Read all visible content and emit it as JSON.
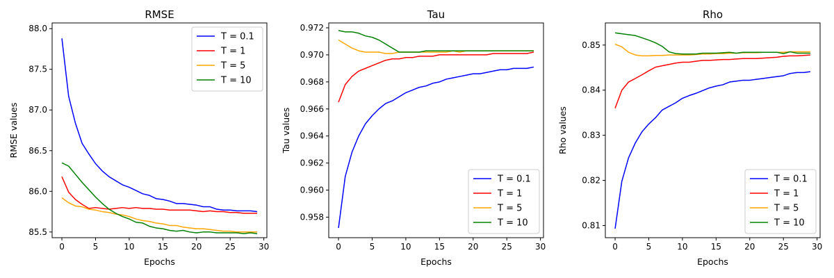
{
  "chart_data": [
    {
      "type": "line",
      "title": "RMSE",
      "xlabel": "Epochs",
      "ylabel": "RMSE values",
      "xlim": [
        -1.45,
        30.45
      ],
      "ylim": [
        85.43,
        88.07
      ],
      "xticks": [
        0,
        5,
        10,
        15,
        20,
        25,
        30
      ],
      "yticks": [
        85.5,
        86.0,
        86.5,
        87.0,
        87.5,
        88.0
      ],
      "ytick_labels": [
        "85.5",
        "86.0",
        "86.5",
        "87.0",
        "87.5",
        "88.0"
      ],
      "legend": "top-right",
      "x": [
        0,
        1,
        2,
        3,
        4,
        5,
        6,
        7,
        8,
        9,
        10,
        11,
        12,
        13,
        14,
        15,
        16,
        17,
        18,
        19,
        20,
        21,
        22,
        23,
        24,
        25,
        26,
        27,
        28,
        29
      ],
      "series": [
        {
          "name": "T = 0.1",
          "color": "#0000ff",
          "values": [
            87.88,
            87.17,
            86.84,
            86.59,
            86.46,
            86.34,
            86.25,
            86.18,
            86.13,
            86.08,
            86.05,
            86.01,
            85.97,
            85.95,
            85.91,
            85.9,
            85.88,
            85.85,
            85.85,
            85.84,
            85.83,
            85.81,
            85.81,
            85.78,
            85.77,
            85.77,
            85.76,
            85.76,
            85.76,
            85.75
          ]
        },
        {
          "name": "T = 1",
          "color": "#ff0000",
          "values": [
            86.18,
            85.99,
            85.9,
            85.84,
            85.79,
            85.8,
            85.79,
            85.78,
            85.79,
            85.8,
            85.79,
            85.8,
            85.79,
            85.79,
            85.78,
            85.78,
            85.77,
            85.77,
            85.77,
            85.77,
            85.76,
            85.75,
            85.76,
            85.75,
            85.75,
            85.74,
            85.74,
            85.73,
            85.73,
            85.73
          ]
        },
        {
          "name": "T = 5",
          "color": "#ffa500",
          "values": [
            85.92,
            85.86,
            85.82,
            85.81,
            85.78,
            85.77,
            85.75,
            85.74,
            85.72,
            85.71,
            85.69,
            85.66,
            85.64,
            85.63,
            85.61,
            85.6,
            85.58,
            85.58,
            85.56,
            85.55,
            85.54,
            85.54,
            85.53,
            85.52,
            85.51,
            85.51,
            85.5,
            85.5,
            85.5,
            85.5
          ]
        },
        {
          "name": "T = 10",
          "color": "#008000",
          "values": [
            86.35,
            86.31,
            86.21,
            86.11,
            86.02,
            85.93,
            85.85,
            85.78,
            85.73,
            85.69,
            85.66,
            85.62,
            85.61,
            85.57,
            85.55,
            85.54,
            85.52,
            85.51,
            85.52,
            85.5,
            85.49,
            85.5,
            85.5,
            85.49,
            85.49,
            85.49,
            85.49,
            85.48,
            85.49,
            85.48
          ]
        }
      ]
    },
    {
      "type": "line",
      "title": "Tau",
      "xlabel": "Epochs",
      "ylabel": "Tau values",
      "xlim": [
        -1.45,
        30.45
      ],
      "ylim": [
        0.95648,
        0.97236
      ],
      "xticks": [
        0,
        5,
        10,
        15,
        20,
        25,
        30
      ],
      "yticks": [
        0.958,
        0.96,
        0.962,
        0.964,
        0.966,
        0.968,
        0.97,
        0.972
      ],
      "ytick_labels": [
        "0.958",
        "0.960",
        "0.962",
        "0.964",
        "0.966",
        "0.968",
        "0.970",
        "0.972"
      ],
      "legend": "lower-right",
      "x": [
        0,
        1,
        2,
        3,
        4,
        5,
        6,
        7,
        8,
        9,
        10,
        11,
        12,
        13,
        14,
        15,
        16,
        17,
        18,
        19,
        20,
        21,
        22,
        23,
        24,
        25,
        26,
        27,
        28,
        29
      ],
      "series": [
        {
          "name": "T = 0.1",
          "color": "#0000ff",
          "values": [
            0.9572,
            0.961,
            0.9628,
            0.964,
            0.9649,
            0.9655,
            0.966,
            0.9664,
            0.9666,
            0.9669,
            0.9672,
            0.9674,
            0.9676,
            0.9677,
            0.9679,
            0.968,
            0.9682,
            0.9683,
            0.9684,
            0.9685,
            0.9686,
            0.9686,
            0.9687,
            0.9688,
            0.9689,
            0.9689,
            0.969,
            0.969,
            0.969,
            0.9691
          ]
        },
        {
          "name": "T = 1",
          "color": "#ff0000",
          "values": [
            0.9665,
            0.9678,
            0.9684,
            0.9688,
            0.969,
            0.9692,
            0.9694,
            0.9696,
            0.9697,
            0.9697,
            0.9698,
            0.9698,
            0.9699,
            0.9699,
            0.9699,
            0.97,
            0.97,
            0.97,
            0.97,
            0.97,
            0.97,
            0.97,
            0.97,
            0.9701,
            0.9701,
            0.9701,
            0.9701,
            0.9701,
            0.9701,
            0.9702
          ]
        },
        {
          "name": "T = 5",
          "color": "#ffa500",
          "values": [
            0.9711,
            0.9708,
            0.9705,
            0.9703,
            0.9702,
            0.9702,
            0.9702,
            0.9701,
            0.9701,
            0.9702,
            0.9702,
            0.9702,
            0.9702,
            0.9702,
            0.9702,
            0.9702,
            0.9702,
            0.9703,
            0.9702,
            0.9703,
            0.9703,
            0.9703,
            0.9703,
            0.9703,
            0.9703,
            0.9703,
            0.9703,
            0.9703,
            0.9703,
            0.9703
          ]
        },
        {
          "name": "T = 10",
          "color": "#008000",
          "values": [
            0.9718,
            0.9717,
            0.9717,
            0.9716,
            0.9714,
            0.9713,
            0.9711,
            0.9708,
            0.9705,
            0.9702,
            0.9702,
            0.9702,
            0.9702,
            0.9703,
            0.9703,
            0.9703,
            0.9703,
            0.9703,
            0.9703,
            0.9703,
            0.9703,
            0.9703,
            0.9703,
            0.9703,
            0.9703,
            0.9703,
            0.9703,
            0.9703,
            0.9703,
            0.9703
          ]
        }
      ]
    },
    {
      "type": "line",
      "title": "Rho",
      "xlabel": "Epochs",
      "ylabel": "Rho values",
      "xlim": [
        -1.45,
        30.45
      ],
      "ylim": [
        0.8073,
        0.8549
      ],
      "xticks": [
        0,
        5,
        10,
        15,
        20,
        25,
        30
      ],
      "yticks": [
        0.81,
        0.82,
        0.83,
        0.84,
        0.85
      ],
      "ytick_labels": [
        "0.81",
        "0.82",
        "0.83",
        "0.84",
        "0.85"
      ],
      "legend": "lower-right",
      "x": [
        0,
        1,
        2,
        3,
        4,
        5,
        6,
        7,
        8,
        9,
        10,
        11,
        12,
        13,
        14,
        15,
        16,
        17,
        18,
        19,
        20,
        21,
        22,
        23,
        24,
        25,
        26,
        27,
        28,
        29
      ],
      "series": [
        {
          "name": "T = 0.1",
          "color": "#0000ff",
          "values": [
            0.8093,
            0.8198,
            0.825,
            0.8283,
            0.8308,
            0.8325,
            0.8339,
            0.8356,
            0.8364,
            0.8372,
            0.8382,
            0.8388,
            0.8393,
            0.8399,
            0.8405,
            0.8409,
            0.8412,
            0.8418,
            0.842,
            0.8422,
            0.8422,
            0.8424,
            0.8426,
            0.8428,
            0.843,
            0.8432,
            0.8437,
            0.8439,
            0.8439,
            0.8441
          ]
        },
        {
          "name": "T = 1",
          "color": "#ff0000",
          "values": [
            0.836,
            0.84,
            0.8418,
            0.8426,
            0.8434,
            0.8443,
            0.8451,
            0.8454,
            0.8457,
            0.846,
            0.8462,
            0.8462,
            0.8464,
            0.8466,
            0.8466,
            0.8467,
            0.8468,
            0.8468,
            0.8469,
            0.847,
            0.847,
            0.847,
            0.8471,
            0.8472,
            0.8473,
            0.8475,
            0.8476,
            0.8476,
            0.8477,
            0.8478
          ]
        },
        {
          "name": "T = 5",
          "color": "#ffa500",
          "values": [
            0.8502,
            0.8496,
            0.8484,
            0.8478,
            0.8476,
            0.8476,
            0.8477,
            0.8477,
            0.8478,
            0.8478,
            0.8478,
            0.8478,
            0.8479,
            0.848,
            0.848,
            0.8481,
            0.8481,
            0.8482,
            0.8482,
            0.8483,
            0.8483,
            0.8483,
            0.8484,
            0.8484,
            0.8484,
            0.8484,
            0.8485,
            0.8485,
            0.8485,
            0.8485
          ]
        },
        {
          "name": "T = 10",
          "color": "#008000",
          "values": [
            0.8527,
            0.8525,
            0.8523,
            0.8521,
            0.8516,
            0.8511,
            0.8505,
            0.8497,
            0.8485,
            0.8481,
            0.848,
            0.848,
            0.848,
            0.8482,
            0.8482,
            0.8482,
            0.8483,
            0.8484,
            0.8482,
            0.8484,
            0.8484,
            0.8484,
            0.8484,
            0.8484,
            0.8484,
            0.8481,
            0.8485,
            0.8482,
            0.8482,
            0.8482
          ]
        }
      ]
    }
  ]
}
